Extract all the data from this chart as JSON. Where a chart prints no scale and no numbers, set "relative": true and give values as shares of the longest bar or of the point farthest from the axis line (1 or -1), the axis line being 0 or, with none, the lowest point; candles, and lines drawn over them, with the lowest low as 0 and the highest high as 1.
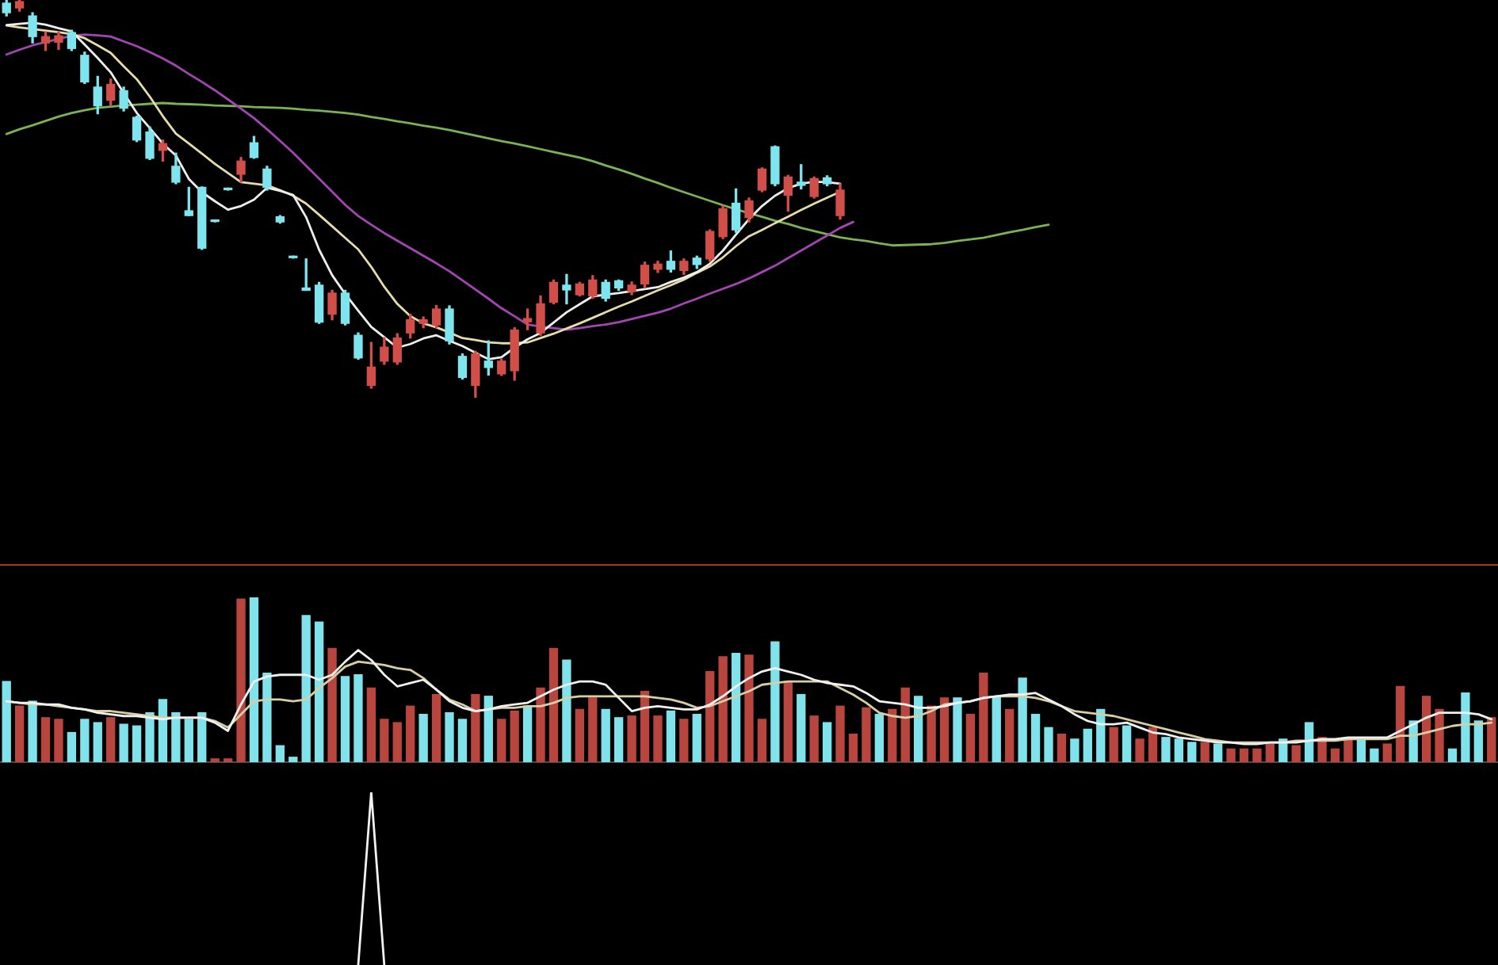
{
  "chart_data": [
    {
      "type": "candlestick",
      "relative": true,
      "categories": [
        null,
        null,
        null,
        null,
        null,
        null,
        null,
        null,
        null,
        null,
        null,
        null,
        null,
        null,
        null,
        null,
        null,
        null,
        null,
        null,
        null,
        null,
        null,
        null,
        null,
        null,
        null,
        null,
        null,
        null,
        null,
        null,
        null,
        null,
        null,
        null,
        null,
        null,
        null,
        null,
        null,
        null,
        null,
        null,
        null,
        null,
        null,
        null,
        null,
        null,
        null,
        null,
        null,
        null,
        null,
        null,
        null,
        null,
        null,
        null,
        null,
        null,
        null,
        null,
        null,
        null,
        null,
        null,
        null,
        null,
        null,
        null,
        null,
        null,
        null,
        null,
        null,
        null,
        null,
        null,
        null,
        null,
        null,
        null,
        null,
        null,
        null,
        null,
        null,
        null,
        null,
        null,
        null,
        null,
        null,
        null,
        null,
        null,
        null,
        null,
        null,
        null,
        null,
        null,
        null,
        null,
        null,
        null,
        null,
        null,
        null,
        null,
        null,
        null,
        null
      ],
      "ohlc": [
        [
          0.992,
          1,
          0.96,
          0.968
        ],
        [
          0.98,
          1,
          0.972,
          0.996
        ],
        [
          0.96,
          0.968,
          0.892,
          0.908
        ],
        [
          0.892,
          0.92,
          0.873,
          0.908
        ],
        [
          0.894,
          0.92,
          0.876,
          0.91
        ],
        [
          0.918,
          0.924,
          0.873,
          0.878
        ],
        [
          0.861,
          0.869,
          0.79,
          0.794
        ],
        [
          0.781,
          0.808,
          0.714,
          0.734
        ],
        [
          0.748,
          0.801,
          0.734,
          0.788
        ],
        [
          0.772,
          0.781,
          0.721,
          0.728
        ],
        [
          0.705,
          0.708,
          0.644,
          0.648
        ],
        [
          0.668,
          0.681,
          0.599,
          0.602
        ],
        [
          0.622,
          0.648,
          0.595,
          0.639
        ],
        [
          0.582,
          0.615,
          0.538,
          0.542
        ],
        [
          0.47,
          0.529,
          0.458,
          0.458
        ],
        [
          0.529,
          0.53,
          0.373,
          0.376
        ],
        [
          0.446,
          0.447,
          0.442,
          0.443
        ],
        [
          0.526,
          0.527,
          0.522,
          0.523
        ],
        [
          0.562,
          0.604,
          0.542,
          0.595
        ],
        [
          0.641,
          0.657,
          0.602,
          0.604
        ],
        [
          0.575,
          0.582,
          0.522,
          0.529
        ],
        [
          0.455,
          0.458,
          0.439,
          0.442
        ],
        [
          0.355,
          0.356,
          0.351,
          0.352
        ],
        [
          0.276,
          0.349,
          0.27,
          0.27
        ],
        [
          0.283,
          0.29,
          0.187,
          0.19
        ],
        [
          0.21,
          0.27,
          0.196,
          0.263
        ],
        [
          0.263,
          0.27,
          0.183,
          0.187
        ],
        [
          0.157,
          0.163,
          0.097,
          0.1
        ],
        [
          0.031,
          0.139,
          0.024,
          0.077
        ],
        [
          0.092,
          0.151,
          0.084,
          0.127
        ],
        [
          0.09,
          0.161,
          0.084,
          0.15
        ],
        [
          0.163,
          0.21,
          0.15,
          0.196
        ],
        [
          0.187,
          0.203,
          0.176,
          0.196
        ],
        [
          0.183,
          0.232,
          0.176,
          0.223
        ],
        [
          0.223,
          0.231,
          0.135,
          0.143
        ],
        [
          0.104,
          0.11,
          0.047,
          0.051
        ],
        [
          0.031,
          0.117,
          0,
          0.11
        ],
        [
          0.092,
          0.143,
          0.057,
          0.076
        ],
        [
          0.06,
          0.097,
          0.056,
          0.092
        ],
        [
          0.068,
          0.176,
          0.044,
          0.17
        ],
        [
          0.191,
          0.223,
          0.171,
          0.199
        ],
        [
          0.163,
          0.256,
          0.157,
          0.236
        ],
        [
          0.24,
          0.296,
          0.236,
          0.29
        ],
        [
          0.283,
          0.31,
          0.236,
          0.271
        ],
        [
          0.259,
          0.29,
          0.256,
          0.286
        ],
        [
          0.256,
          0.307,
          0.25,
          0.296
        ],
        [
          0.29,
          0.296,
          0.243,
          0.25
        ],
        [
          0.294,
          0.296,
          0.27,
          0.276
        ],
        [
          0.267,
          0.291,
          0.259,
          0.283
        ],
        [
          0.286,
          0.341,
          0.276,
          0.333
        ],
        [
          0.323,
          0.343,
          0.315,
          0.336
        ],
        [
          0.343,
          0.369,
          0.316,
          0.323
        ],
        [
          0.32,
          0.349,
          0.31,
          0.343
        ],
        [
          0.351,
          0.356,
          0.325,
          0.335
        ],
        [
          0.349,
          0.422,
          0.343,
          0.418
        ],
        [
          0.405,
          0.482,
          0.4,
          0.475
        ],
        [
          0.489,
          0.525,
          0.416,
          0.422
        ],
        [
          0.453,
          0.502,
          0.442,
          0.495
        ],
        [
          0.522,
          0.578,
          0.518,
          0.575
        ],
        [
          0.631,
          0.633,
          0.533,
          0.538
        ],
        [
          0.509,
          0.559,
          0.469,
          0.555
        ],
        [
          0.542,
          0.586,
          0.525,
          0.534
        ],
        [
          0.506,
          0.555,
          0.502,
          0.551
        ],
        [
          0.553,
          0.558,
          0.533,
          0.538
        ],
        [
          0.458,
          0.538,
          0.449,
          0.522
        ],
        null,
        null,
        null,
        null,
        null,
        null,
        null,
        null,
        null,
        null,
        null,
        null,
        null,
        null,
        null,
        null,
        null,
        null,
        null,
        null,
        null,
        null,
        null,
        null,
        null,
        null,
        null,
        null,
        null,
        null,
        null,
        null,
        null,
        null,
        null,
        null,
        null,
        null,
        null,
        null,
        null,
        null,
        null,
        null,
        null,
        null,
        null,
        null,
        null,
        null
      ],
      "colors": [
        "#7ee4ee",
        "#d24f49",
        "#7ee4ee",
        "#d24f49",
        "#d24f49",
        "#7ee4ee",
        "#7ee4ee",
        "#7ee4ee",
        "#d24f49",
        "#7ee4ee",
        "#7ee4ee",
        "#7ee4ee",
        "#d24f49",
        "#7ee4ee",
        "#7ee4ee",
        "#7ee4ee",
        "#7ee4ee",
        "#7ee4ee",
        "#d24f49",
        "#7ee4ee",
        "#7ee4ee",
        "#7ee4ee",
        "#7ee4ee",
        "#7ee4ee",
        "#7ee4ee",
        "#d24f49",
        "#7ee4ee",
        "#7ee4ee",
        "#d24f49",
        "#d24f49",
        "#d24f49",
        "#d24f49",
        "#d24f49",
        "#d24f49",
        "#7ee4ee",
        "#7ee4ee",
        "#d24f49",
        "#7ee4ee",
        "#d24f49",
        "#d24f49",
        "#d24f49",
        "#d24f49",
        "#d24f49",
        "#7ee4ee",
        "#d24f49",
        "#d24f49",
        "#7ee4ee",
        "#7ee4ee",
        "#d24f49",
        "#d24f49",
        "#d24f49",
        "#7ee4ee",
        "#d24f49",
        "#7ee4ee",
        "#d24f49",
        "#d24f49",
        "#7ee4ee",
        "#d24f49",
        "#d24f49",
        "#7ee4ee",
        "#d24f49",
        "#7ee4ee",
        "#d24f49",
        "#7ee4ee",
        "#d24f49",
        null,
        null,
        null,
        null,
        null,
        null,
        null,
        null,
        null,
        null,
        null,
        null,
        null,
        null,
        null,
        null,
        null,
        null,
        null,
        null,
        null,
        null,
        null,
        null,
        null,
        null,
        null,
        null,
        null,
        null,
        null,
        null,
        null,
        null,
        null,
        null,
        null,
        null,
        null,
        null,
        null,
        null,
        null,
        null,
        null,
        null,
        null,
        null,
        null,
        null
      ],
      "series": [
        {
          "type": "line",
          "color": "#eeeeee",
          "values": [
            0.937,
            0.94,
            0.943,
            0.938,
            0.929,
            0.921,
            0.888,
            0.854,
            0.818,
            0.766,
            0.716,
            0.678,
            0.639,
            0.609,
            0.55,
            0.517,
            0.494,
            0.473,
            0.482,
            0.498,
            0.528,
            0.52,
            0.51,
            0.454,
            0.372,
            0.308,
            0.261,
            0.219,
            0.178,
            0.152,
            0.126,
            0.135,
            0.149,
            0.157,
            0.143,
            0.13,
            0.113,
            0.097,
            0.102,
            0.126,
            0.147,
            0.163,
            0.189,
            0.215,
            0.235,
            0.255,
            0.259,
            0.263,
            0.268,
            0.273,
            0.278,
            0.291,
            0.302,
            0.316,
            0.337,
            0.37,
            0.41,
            0.449,
            0.482,
            0.508,
            0.527,
            0.538,
            0.543,
            0.542,
            0.538,
            null,
            null,
            null,
            null,
            null,
            null,
            null,
            null,
            null,
            null,
            null,
            null,
            null,
            null,
            null,
            null,
            null,
            null,
            null,
            null,
            null,
            null,
            null,
            null,
            null,
            null,
            null,
            null,
            null,
            null,
            null,
            null,
            null,
            null,
            null,
            null,
            null,
            null,
            null,
            null,
            null,
            null,
            null,
            null,
            null,
            null,
            null,
            null,
            null,
            null
          ]
        },
        {
          "type": "line",
          "color": "#e6dcaa",
          "values": [
            0.936,
            0.931,
            0.927,
            0.923,
            0.919,
            0.914,
            0.904,
            0.886,
            0.867,
            0.833,
            0.801,
            0.757,
            0.708,
            0.664,
            0.639,
            0.614,
            0.588,
            0.565,
            0.542,
            0.538,
            0.534,
            0.522,
            0.508,
            0.488,
            0.46,
            0.431,
            0.402,
            0.373,
            0.329,
            0.279,
            0.236,
            0.205,
            0.187,
            0.177,
            0.164,
            0.15,
            0.145,
            0.139,
            0.137,
            0.137,
            0.139,
            0.15,
            0.161,
            0.174,
            0.187,
            0.201,
            0.215,
            0.229,
            0.242,
            0.256,
            0.27,
            0.283,
            0.297,
            0.314,
            0.33,
            0.353,
            0.381,
            0.406,
            0.422,
            0.439,
            0.455,
            0.472,
            0.488,
            0.503,
            0.518,
            null,
            null,
            null,
            null,
            null,
            null,
            null,
            null,
            null,
            null,
            null,
            null,
            null,
            null,
            null,
            null,
            null,
            null,
            null,
            null,
            null,
            null,
            null,
            null,
            null,
            null,
            null,
            null,
            null,
            null,
            null,
            null,
            null,
            null,
            null,
            null,
            null,
            null,
            null,
            null,
            null,
            null,
            null,
            null,
            null,
            null,
            null,
            null,
            null,
            null
          ]
        },
        {
          "type": "line",
          "color": "#a346b4",
          "values": [
            0.863,
            0.875,
            0.886,
            0.894,
            0.902,
            0.91,
            0.913,
            0.911,
            0.908,
            0.896,
            0.884,
            0.869,
            0.853,
            0.835,
            0.814,
            0.794,
            0.773,
            0.75,
            0.727,
            0.703,
            0.675,
            0.646,
            0.616,
            0.583,
            0.551,
            0.518,
            0.485,
            0.457,
            0.435,
            0.414,
            0.395,
            0.376,
            0.357,
            0.338,
            0.318,
            0.295,
            0.272,
            0.249,
            0.225,
            0.205,
            0.184,
            0.179,
            0.175,
            0.171,
            0.175,
            0.18,
            0.184,
            0.19,
            0.198,
            0.206,
            0.214,
            0.224,
            0.237,
            0.249,
            0.262,
            0.274,
            0.286,
            0.3,
            0.316,
            0.332,
            0.351,
            0.37,
            0.389,
            0.408,
            0.427,
            0.442,
            null,
            null,
            null,
            null,
            null,
            null,
            null,
            null,
            null,
            null,
            null,
            null,
            null,
            null,
            null,
            null,
            null,
            null,
            null,
            null,
            null,
            null,
            null,
            null,
            null,
            null,
            null,
            null,
            null,
            null,
            null,
            null,
            null,
            null,
            null,
            null,
            null,
            null,
            null,
            null,
            null,
            null,
            null,
            null,
            null,
            null,
            null,
            null,
            null
          ]
        },
        {
          "type": "line",
          "color": "#7ab452",
          "values": [
            0.663,
            0.675,
            0.685,
            0.696,
            0.707,
            0.716,
            0.723,
            0.729,
            0.732,
            0.735,
            0.737,
            0.739,
            0.741,
            0.739,
            0.738,
            0.737,
            0.735,
            0.734,
            0.733,
            0.731,
            0.73,
            0.729,
            0.727,
            0.724,
            0.722,
            0.719,
            0.716,
            0.712,
            0.706,
            0.701,
            0.695,
            0.69,
            0.684,
            0.679,
            0.673,
            0.666,
            0.659,
            0.652,
            0.645,
            0.639,
            0.632,
            0.625,
            0.618,
            0.611,
            0.604,
            0.595,
            0.584,
            0.574,
            0.563,
            0.551,
            0.54,
            0.528,
            0.517,
            0.506,
            0.495,
            0.484,
            0.474,
            0.464,
            0.455,
            0.445,
            0.437,
            0.427,
            0.419,
            0.411,
            0.403,
            0.398,
            0.394,
            0.388,
            0.383,
            0.384,
            0.385,
            0.386,
            0.389,
            0.394,
            0.398,
            0.402,
            0.409,
            0.416,
            0.422,
            0.429,
            0.435,
            null,
            null,
            null,
            null,
            null,
            null,
            null,
            null,
            null,
            null,
            null,
            null,
            null,
            null,
            null,
            null,
            null,
            null,
            null,
            null,
            null,
            null,
            null,
            null,
            null,
            null,
            null,
            null,
            null,
            null,
            null,
            null,
            null,
            null
          ]
        }
      ]
    },
    {
      "type": "bar",
      "relative": true,
      "categories": [
        null,
        null,
        null,
        null,
        null,
        null,
        null,
        null,
        null,
        null,
        null,
        null,
        null,
        null,
        null,
        null,
        null,
        null,
        null,
        null,
        null,
        null,
        null,
        null,
        null,
        null,
        null,
        null,
        null,
        null,
        null,
        null,
        null,
        null,
        null,
        null,
        null,
        null,
        null,
        null,
        null,
        null,
        null,
        null,
        null,
        null,
        null,
        null,
        null,
        null,
        null,
        null,
        null,
        null,
        null,
        null,
        null,
        null,
        null,
        null,
        null,
        null,
        null,
        null,
        null,
        null,
        null,
        null,
        null,
        null,
        null,
        null,
        null,
        null,
        null,
        null,
        null,
        null,
        null,
        null,
        null,
        null,
        null,
        null,
        null,
        null,
        null,
        null,
        null,
        null,
        null,
        null,
        null,
        null,
        null,
        null,
        null,
        null,
        null,
        null,
        null,
        null,
        null,
        null,
        null,
        null,
        null,
        null,
        null,
        null,
        null,
        null,
        null,
        null,
        null
      ],
      "series": [
        {
          "type": "bar",
          "values": [
            0.49,
            0.34,
            0.37,
            0.27,
            0.26,
            0.18,
            0.26,
            0.24,
            0.27,
            0.23,
            0.22,
            0.3,
            0.38,
            0.3,
            0.26,
            0.3,
            0.02,
            0.02,
            0.99,
            1,
            0.54,
            0.1,
            0.03,
            0.89,
            0.85,
            0.69,
            0.52,
            0.53,
            0.45,
            0.26,
            0.24,
            0.34,
            0.29,
            0.41,
            0.3,
            0.26,
            0.41,
            0.4,
            0.26,
            0.31,
            0.34,
            0.45,
            0.69,
            0.62,
            0.32,
            0.39,
            0.32,
            0.27,
            0.28,
            0.43,
            0.28,
            0.31,
            0.26,
            0.29,
            0.55,
            0.64,
            0.66,
            0.65,
            0.26,
            0.73,
            0.49,
            0.41,
            0.28,
            0.24,
            0.34,
            0.17,
            0.33,
            0.29,
            0.32,
            0.45,
            0.4,
            0.34,
            0.39,
            0.39,
            0.29,
            0.54,
            0.4,
            0.32,
            0.51,
            0.29,
            0.21,
            0.17,
            0.14,
            0.2,
            0.32,
            0.21,
            0.22,
            0.14,
            0.21,
            0.15,
            0.14,
            0.12,
            0.12,
            0.11,
            0.08,
            0.08,
            0.08,
            0.11,
            0.14,
            0.1,
            0.24,
            0.15,
            0.08,
            0.15,
            0.15,
            0.08,
            0.11,
            0.46,
            0.25,
            0.4,
            0.32,
            0.08,
            0.42,
            0.25,
            0.27
          ],
          "colors": [
            "#80e2ea",
            "#b9453f",
            "#80e2ea",
            "#b9453f",
            "#b9453f",
            "#80e2ea",
            "#80e2ea",
            "#80e2ea",
            "#b9453f",
            "#80e2ea",
            "#80e2ea",
            "#80e2ea",
            "#80e2ea",
            "#80e2ea",
            "#80e2ea",
            "#80e2ea",
            "#b9453f",
            "#b9453f",
            "#b9453f",
            "#80e2ea",
            "#80e2ea",
            "#80e2ea",
            "#80e2ea",
            "#80e2ea",
            "#80e2ea",
            "#b9453f",
            "#80e2ea",
            "#80e2ea",
            "#b9453f",
            "#b9453f",
            "#b9453f",
            "#b9453f",
            "#80e2ea",
            "#b9453f",
            "#80e2ea",
            "#80e2ea",
            "#b9453f",
            "#80e2ea",
            "#b9453f",
            "#b9453f",
            "#80e2ea",
            "#b9453f",
            "#b9453f",
            "#80e2ea",
            "#b9453f",
            "#b9453f",
            "#80e2ea",
            "#80e2ea",
            "#b9453f",
            "#b9453f",
            "#b9453f",
            "#80e2ea",
            "#b9453f",
            "#80e2ea",
            "#b9453f",
            "#b9453f",
            "#80e2ea",
            "#b9453f",
            "#b9453f",
            "#80e2ea",
            "#b9453f",
            "#80e2ea",
            "#b9453f",
            "#80e2ea",
            "#b9453f",
            "#b9453f",
            "#b9453f",
            "#80e2ea",
            "#b9453f",
            "#b9453f",
            "#80e2ea",
            "#b9453f",
            "#b9453f",
            "#80e2ea",
            "#b9453f",
            "#b9453f",
            "#80e2ea",
            "#b9453f",
            "#80e2ea",
            "#80e2ea",
            "#80e2ea",
            "#b9453f",
            "#80e2ea",
            "#80e2ea",
            "#80e2ea",
            "#b9453f",
            "#80e2ea",
            "#b9453f",
            "#b9453f",
            "#80e2ea",
            "#80e2ea",
            "#80e2ea",
            "#b9453f",
            "#80e2ea",
            "#b9453f",
            "#b9453f",
            "#b9453f",
            "#b9453f",
            "#80e2ea",
            "#b9453f",
            "#80e2ea",
            "#b9453f",
            "#b9453f",
            "#b9453f",
            "#80e2ea",
            "#80e2ea",
            "#b9453f",
            "#b9453f",
            "#80e2ea",
            "#b9453f",
            "#b9453f",
            "#80e2ea",
            "#80e2ea",
            "#80e2ea",
            "#b9453f"
          ]
        },
        {
          "type": "line",
          "color": "#f0f0f0",
          "values": [
            0.37,
            0.36,
            0.36,
            0.35,
            0.35,
            0.33,
            0.32,
            0.3,
            0.29,
            0.28,
            0.28,
            0.27,
            0.26,
            0.27,
            0.27,
            0.27,
            0.24,
            0.19,
            0.35,
            0.49,
            0.52,
            0.53,
            0.53,
            0.53,
            0.5,
            0.53,
            0.61,
            0.68,
            0.62,
            0.53,
            0.46,
            0.48,
            0.5,
            0.44,
            0.37,
            0.33,
            0.31,
            0.32,
            0.34,
            0.35,
            0.36,
            0.4,
            0.44,
            0.47,
            0.49,
            0.49,
            0.47,
            0.39,
            0.31,
            0.33,
            0.34,
            0.33,
            0.32,
            0.32,
            0.35,
            0.4,
            0.46,
            0.51,
            0.55,
            0.57,
            0.55,
            0.53,
            0.5,
            0.48,
            0.47,
            0.46,
            0.42,
            0.37,
            0.36,
            0.35,
            0.33,
            0.33,
            0.34,
            0.36,
            0.37,
            0.39,
            0.4,
            0.41,
            0.41,
            0.42,
            0.38,
            0.34,
            0.29,
            0.25,
            0.23,
            0.23,
            0.24,
            0.21,
            0.18,
            0.17,
            0.15,
            0.14,
            0.13,
            0.12,
            0.12,
            0.11,
            0.11,
            0.12,
            0.12,
            0.12,
            0.13,
            0.14,
            0.14,
            0.15,
            0.15,
            0.15,
            0.15,
            0.19,
            0.23,
            0.27,
            0.3,
            0.3,
            0.3,
            0.29,
            0.26
          ]
        },
        {
          "type": "line",
          "color": "#d8cea4",
          "values": [
            0.37,
            0.36,
            0.35,
            0.35,
            0.34,
            0.33,
            0.32,
            0.31,
            0.31,
            0.3,
            0.29,
            0.28,
            0.27,
            0.27,
            0.27,
            0.27,
            0.25,
            0.21,
            0.29,
            0.37,
            0.38,
            0.38,
            0.37,
            0.38,
            0.45,
            0.51,
            0.58,
            0.61,
            0.6,
            0.59,
            0.57,
            0.56,
            0.51,
            0.44,
            0.38,
            0.35,
            0.31,
            0.32,
            0.33,
            0.33,
            0.34,
            0.34,
            0.36,
            0.39,
            0.4,
            0.4,
            0.4,
            0.4,
            0.4,
            0.4,
            0.39,
            0.38,
            0.36,
            0.33,
            0.34,
            0.37,
            0.4,
            0.43,
            0.47,
            0.48,
            0.49,
            0.49,
            0.49,
            0.49,
            0.45,
            0.41,
            0.36,
            0.3,
            0.28,
            0.27,
            0.28,
            0.31,
            0.35,
            0.36,
            0.37,
            0.39,
            0.4,
            0.4,
            0.4,
            0.39,
            0.37,
            0.34,
            0.31,
            0.3,
            0.29,
            0.28,
            0.26,
            0.24,
            0.22,
            0.2,
            0.18,
            0.16,
            0.14,
            0.13,
            0.12,
            0.12,
            0.12,
            0.12,
            0.12,
            0.13,
            0.13,
            0.13,
            0.13,
            0.14,
            0.14,
            0.14,
            0.14,
            0.16,
            0.16,
            0.18,
            0.2,
            0.22,
            0.23,
            0.23,
            0.24
          ]
        }
      ]
    },
    {
      "type": "line",
      "relative": true,
      "color": "#f2f2f2",
      "categories": [
        null,
        null,
        null,
        null,
        null,
        null,
        null,
        null,
        null,
        null,
        null,
        null,
        null,
        null,
        null,
        null,
        null,
        null,
        null,
        null,
        null,
        null,
        null,
        null,
        null,
        null,
        null,
        null,
        null,
        null,
        null,
        null,
        null,
        null,
        null,
        null,
        null,
        null,
        null,
        null,
        null,
        null,
        null,
        null,
        null,
        null,
        null,
        null,
        null,
        null,
        null,
        null,
        null,
        null,
        null,
        null,
        null,
        null,
        null,
        null,
        null,
        null,
        null,
        null,
        null,
        null,
        null,
        null,
        null,
        null,
        null,
        null,
        null,
        null,
        null,
        null,
        null,
        null,
        null,
        null,
        null,
        null,
        null,
        null,
        null,
        null,
        null,
        null,
        null,
        null,
        null,
        null,
        null,
        null,
        null,
        null,
        null,
        null,
        null,
        null,
        null,
        null,
        null,
        null,
        null,
        null,
        null,
        null,
        null,
        null,
        null,
        null,
        null,
        null,
        null
      ],
      "values": [
        null,
        null,
        null,
        null,
        null,
        null,
        null,
        null,
        null,
        null,
        null,
        null,
        null,
        null,
        null,
        null,
        null,
        null,
        null,
        null,
        null,
        null,
        null,
        null,
        null,
        null,
        null,
        0,
        1,
        0,
        null,
        null,
        null,
        null,
        null,
        null,
        null,
        null,
        null,
        null,
        null,
        null,
        null,
        null,
        null,
        null,
        null,
        null,
        null,
        null,
        null,
        null,
        null,
        null,
        null,
        null,
        null,
        null,
        null,
        null,
        null,
        null,
        null,
        null,
        null,
        null,
        null,
        null,
        null,
        null,
        null,
        null,
        null,
        null,
        null,
        null,
        null,
        null,
        null,
        null,
        null,
        null,
        null,
        null,
        null,
        null,
        null,
        null,
        null,
        null,
        null,
        null,
        null,
        null,
        null,
        null,
        null,
        null,
        null,
        null,
        null,
        null,
        null,
        null,
        null,
        null,
        null,
        null,
        null,
        null,
        null,
        null,
        null,
        null,
        null
      ]
    }
  ]
}
